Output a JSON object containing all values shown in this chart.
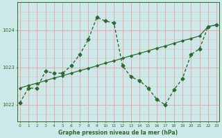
{
  "bg_color": "#cce8e8",
  "grid_color_major": "#e8a0a0",
  "grid_color_minor": "#e8c0c0",
  "line_color": "#2d6a2d",
  "xlabel": "Graphe pression niveau de la mer (hPa)",
  "ylim": [
    1021.55,
    1024.75
  ],
  "xlim": [
    -0.3,
    23.3
  ],
  "yticks": [
    1022,
    1023,
    1024
  ],
  "xticks": [
    0,
    1,
    2,
    3,
    4,
    5,
    6,
    7,
    8,
    9,
    10,
    11,
    12,
    13,
    14,
    15,
    16,
    17,
    18,
    19,
    20,
    21,
    22,
    23
  ],
  "series1_x": [
    0,
    1,
    2,
    3,
    4,
    5,
    6,
    7,
    8,
    9,
    10,
    11,
    12,
    13,
    14,
    15,
    16,
    17,
    18,
    19,
    20,
    21,
    22,
    23
  ],
  "series1_y": [
    1022.05,
    1022.45,
    1022.45,
    1022.9,
    1022.85,
    1022.85,
    1023.05,
    1023.35,
    1023.75,
    1024.35,
    1024.25,
    1024.2,
    1023.05,
    1022.75,
    1022.65,
    1022.45,
    1022.15,
    1022.0,
    1022.4,
    1022.7,
    1023.35,
    1023.5,
    1024.1,
    1024.15
  ],
  "series2_x": [
    0,
    1,
    2,
    3,
    4,
    5,
    6,
    7,
    8,
    9,
    10,
    11,
    12,
    13,
    14,
    15,
    16,
    17,
    18,
    19,
    20,
    21,
    22,
    23
  ],
  "series2_y": [
    1022.45,
    1022.52,
    1022.58,
    1022.65,
    1022.72,
    1022.78,
    1022.85,
    1022.92,
    1022.98,
    1023.05,
    1023.12,
    1023.18,
    1023.25,
    1023.32,
    1023.38,
    1023.45,
    1023.52,
    1023.58,
    1023.65,
    1023.72,
    1023.78,
    1023.85,
    1024.1,
    1024.15
  ]
}
